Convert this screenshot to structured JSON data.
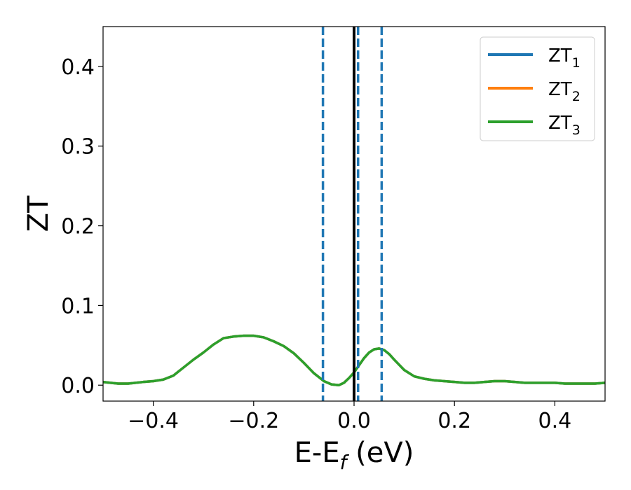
{
  "chart_data": {
    "type": "line",
    "xlabel_main": "E-E",
    "xlabel_sub": "f",
    "xlabel_unit": " (eV)",
    "ylabel": "ZT",
    "xlim": [
      -0.5,
      0.5
    ],
    "ylim": [
      -0.02,
      0.45
    ],
    "xticks": [
      -0.4,
      -0.2,
      0.0,
      0.2,
      0.4
    ],
    "xtick_labels": [
      "−0.4",
      "−0.2",
      "0.0",
      "0.2",
      "0.4"
    ],
    "yticks": [
      0.0,
      0.1,
      0.2,
      0.3,
      0.4
    ],
    "ytick_labels": [
      "0.0",
      "0.1",
      "0.2",
      "0.3",
      "0.4"
    ],
    "grid": false,
    "legend_position": "top-right",
    "vertical_lines": [
      {
        "x": -0.062,
        "style": "dashed",
        "color": "#1f77b4"
      },
      {
        "x": 0.008,
        "style": "dashed",
        "color": "#1f77b4"
      },
      {
        "x": 0.055,
        "style": "dashed",
        "color": "#1f77b4"
      },
      {
        "x": 0.0,
        "style": "solid",
        "color": "#000000"
      }
    ],
    "series": [
      {
        "name_main": "ZT",
        "name_sub": "1",
        "color": "#1f77b4",
        "x": [
          -0.5,
          -0.47,
          -0.45,
          -0.42,
          -0.4,
          -0.38,
          -0.36,
          -0.34,
          -0.32,
          -0.3,
          -0.28,
          -0.26,
          -0.24,
          -0.22,
          -0.2,
          -0.18,
          -0.16,
          -0.14,
          -0.12,
          -0.1,
          -0.08,
          -0.06,
          -0.045,
          -0.03,
          -0.02,
          -0.01,
          0.0,
          0.01,
          0.02,
          0.03,
          0.04,
          0.05,
          0.06,
          0.07,
          0.08,
          0.1,
          0.12,
          0.14,
          0.16,
          0.18,
          0.2,
          0.22,
          0.24,
          0.26,
          0.28,
          0.3,
          0.32,
          0.34,
          0.36,
          0.38,
          0.4,
          0.42,
          0.44,
          0.46,
          0.48,
          0.5
        ],
        "y": [
          0.004,
          0.002,
          0.002,
          0.004,
          0.005,
          0.007,
          0.012,
          0.022,
          0.032,
          0.041,
          0.051,
          0.059,
          0.061,
          0.062,
          0.062,
          0.06,
          0.055,
          0.049,
          0.04,
          0.028,
          0.015,
          0.005,
          0.001,
          0.0,
          0.003,
          0.009,
          0.016,
          0.025,
          0.034,
          0.041,
          0.045,
          0.046,
          0.044,
          0.039,
          0.032,
          0.019,
          0.011,
          0.008,
          0.006,
          0.005,
          0.004,
          0.003,
          0.003,
          0.004,
          0.005,
          0.005,
          0.004,
          0.003,
          0.003,
          0.003,
          0.003,
          0.002,
          0.002,
          0.002,
          0.002,
          0.003
        ]
      },
      {
        "name_main": "ZT",
        "name_sub": "2",
        "color": "#ff7f0e",
        "x": [
          -0.5,
          -0.47,
          -0.45,
          -0.42,
          -0.4,
          -0.38,
          -0.36,
          -0.34,
          -0.32,
          -0.3,
          -0.28,
          -0.26,
          -0.24,
          -0.22,
          -0.2,
          -0.18,
          -0.16,
          -0.14,
          -0.12,
          -0.1,
          -0.08,
          -0.06,
          -0.045,
          -0.03,
          -0.02,
          -0.01,
          0.0,
          0.01,
          0.02,
          0.03,
          0.04,
          0.05,
          0.06,
          0.07,
          0.08,
          0.1,
          0.12,
          0.14,
          0.16,
          0.18,
          0.2,
          0.22,
          0.24,
          0.26,
          0.28,
          0.3,
          0.32,
          0.34,
          0.36,
          0.38,
          0.4,
          0.42,
          0.44,
          0.46,
          0.48,
          0.5
        ],
        "y": [
          0.004,
          0.002,
          0.002,
          0.004,
          0.005,
          0.007,
          0.012,
          0.022,
          0.032,
          0.041,
          0.051,
          0.059,
          0.061,
          0.062,
          0.062,
          0.06,
          0.055,
          0.049,
          0.04,
          0.028,
          0.015,
          0.005,
          0.001,
          0.0,
          0.003,
          0.009,
          0.016,
          0.025,
          0.034,
          0.041,
          0.045,
          0.046,
          0.044,
          0.039,
          0.032,
          0.019,
          0.011,
          0.008,
          0.006,
          0.005,
          0.004,
          0.003,
          0.003,
          0.004,
          0.005,
          0.005,
          0.004,
          0.003,
          0.003,
          0.003,
          0.003,
          0.002,
          0.002,
          0.002,
          0.002,
          0.003
        ]
      },
      {
        "name_main": "ZT",
        "name_sub": "3",
        "color": "#2ca02c",
        "x": [
          -0.5,
          -0.47,
          -0.45,
          -0.42,
          -0.4,
          -0.38,
          -0.36,
          -0.34,
          -0.32,
          -0.3,
          -0.28,
          -0.26,
          -0.24,
          -0.22,
          -0.2,
          -0.18,
          -0.16,
          -0.14,
          -0.12,
          -0.1,
          -0.08,
          -0.06,
          -0.045,
          -0.03,
          -0.02,
          -0.01,
          0.0,
          0.01,
          0.02,
          0.03,
          0.04,
          0.05,
          0.06,
          0.07,
          0.08,
          0.1,
          0.12,
          0.14,
          0.16,
          0.18,
          0.2,
          0.22,
          0.24,
          0.26,
          0.28,
          0.3,
          0.32,
          0.34,
          0.36,
          0.38,
          0.4,
          0.42,
          0.44,
          0.46,
          0.48,
          0.5
        ],
        "y": [
          0.004,
          0.002,
          0.002,
          0.004,
          0.005,
          0.007,
          0.012,
          0.022,
          0.032,
          0.041,
          0.051,
          0.059,
          0.061,
          0.062,
          0.062,
          0.06,
          0.055,
          0.049,
          0.04,
          0.028,
          0.015,
          0.005,
          0.001,
          0.0,
          0.003,
          0.009,
          0.016,
          0.025,
          0.034,
          0.041,
          0.045,
          0.046,
          0.044,
          0.039,
          0.032,
          0.019,
          0.011,
          0.008,
          0.006,
          0.005,
          0.004,
          0.003,
          0.003,
          0.004,
          0.005,
          0.005,
          0.004,
          0.003,
          0.003,
          0.003,
          0.003,
          0.002,
          0.002,
          0.002,
          0.002,
          0.003
        ]
      }
    ]
  }
}
